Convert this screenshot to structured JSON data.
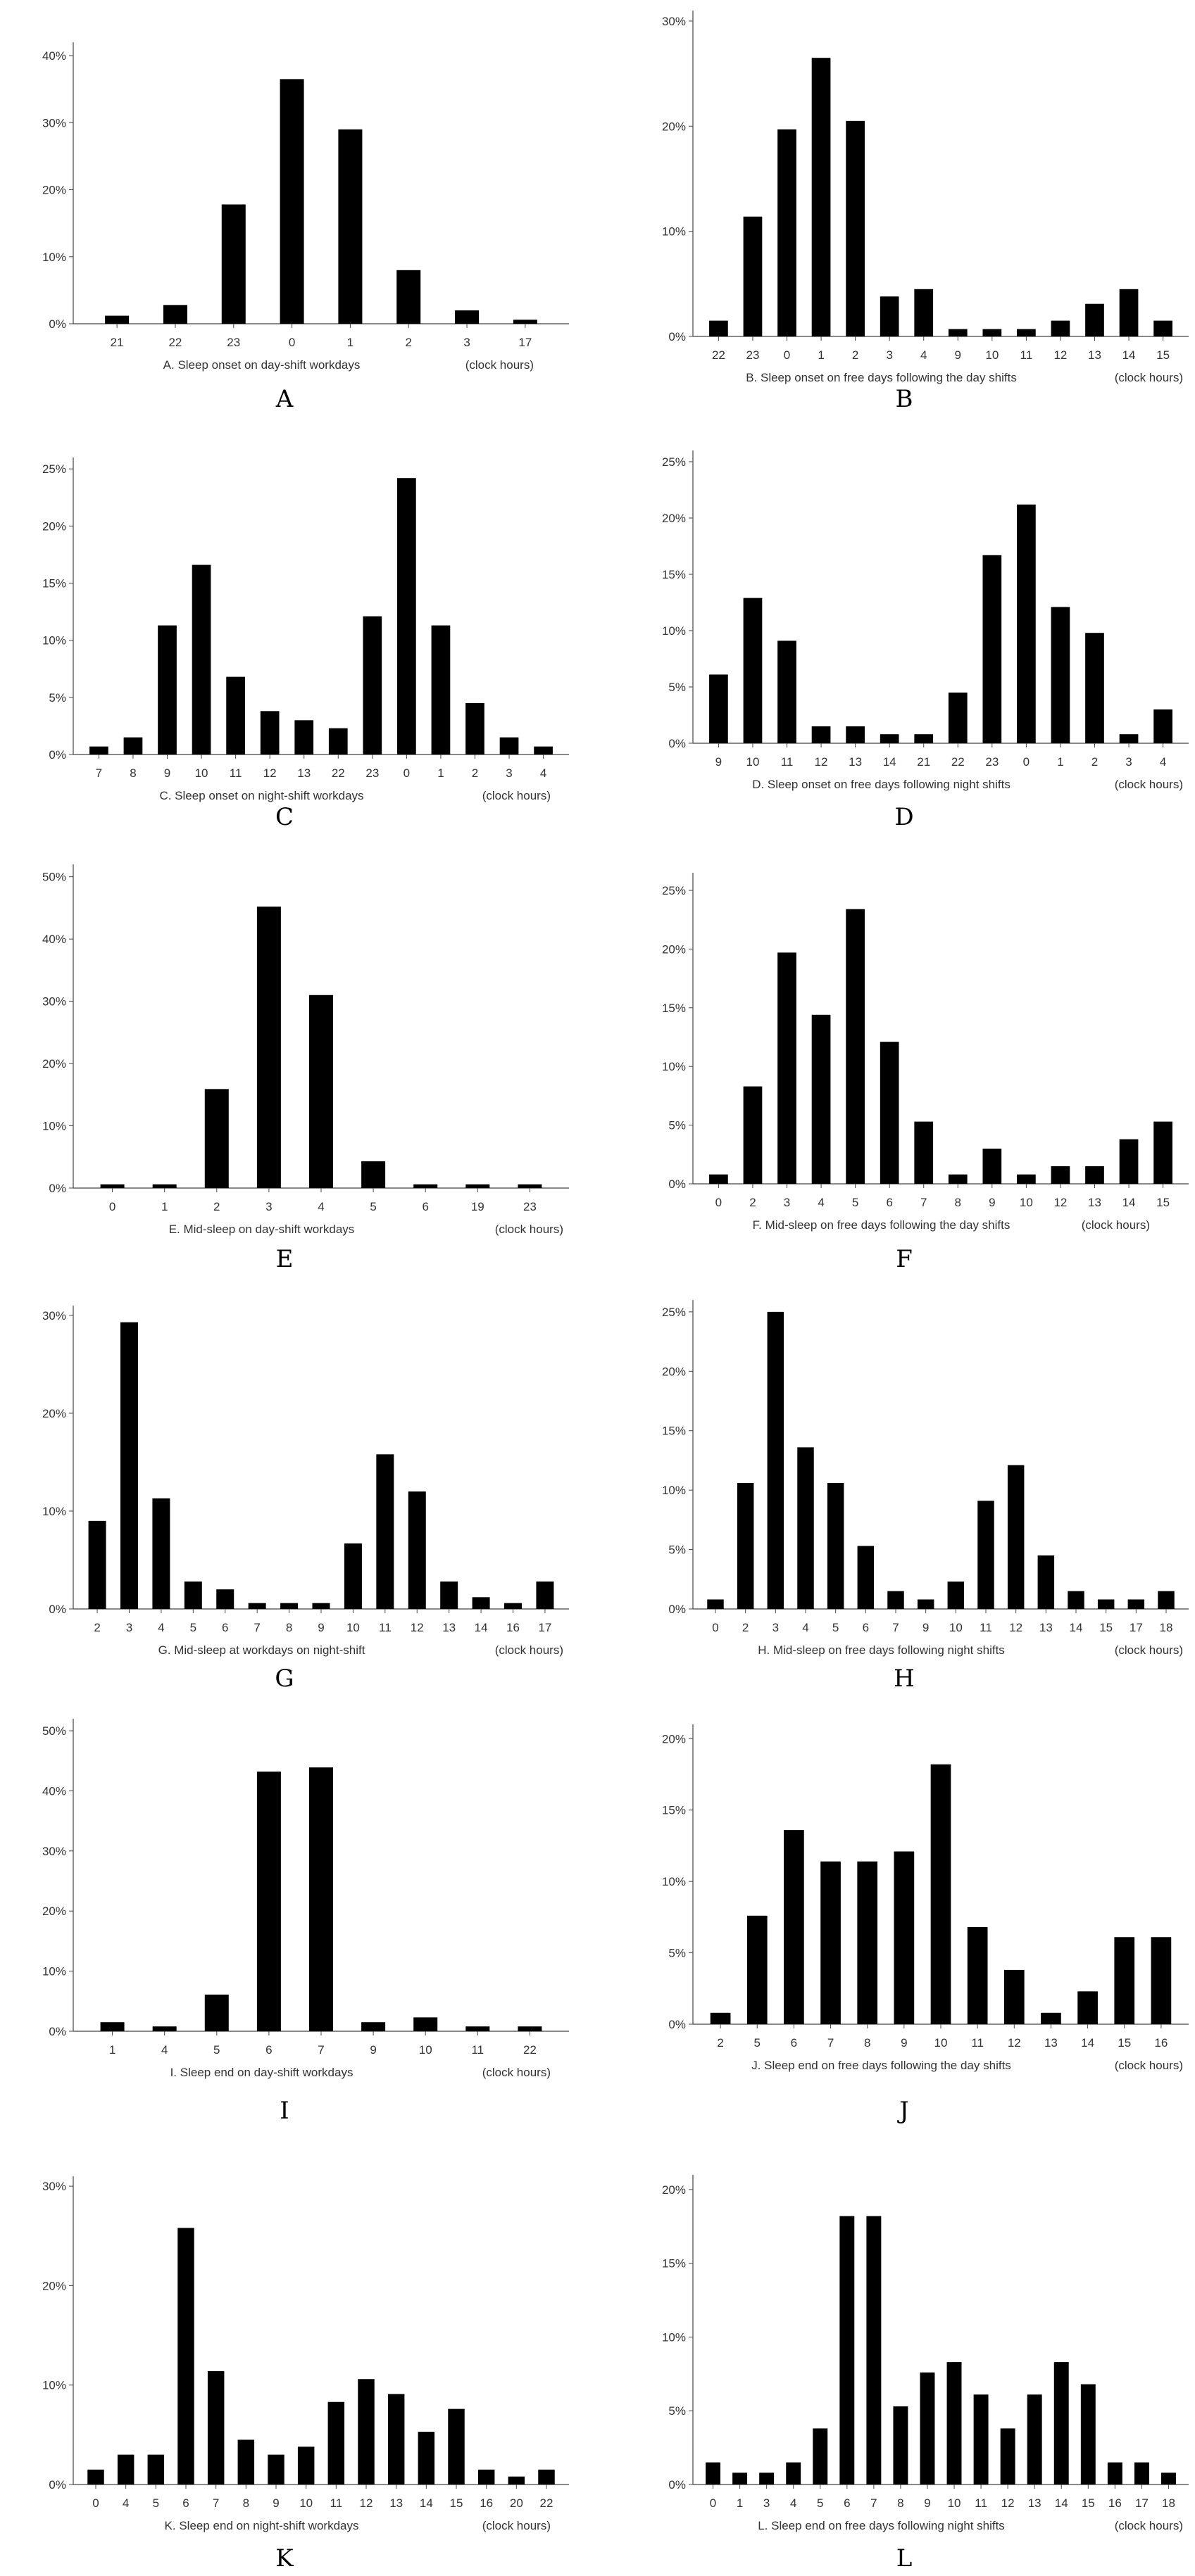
{
  "chart_data": [
    {
      "id": "A",
      "type": "bar",
      "panel_label": "A",
      "caption": "A.  Sleep onset  on day-shift workdays",
      "unit_label": "(clock hours)",
      "y_ticks": [
        "0%",
        "10%",
        "20%",
        "30%",
        "40%"
      ],
      "ylim": [
        0,
        42
      ],
      "categories": [
        "21",
        "22",
        "23",
        "0",
        "1",
        "2",
        "3",
        "17"
      ],
      "values": [
        1.2,
        2.8,
        17.8,
        36.5,
        29,
        8,
        2,
        0.6
      ]
    },
    {
      "id": "B",
      "type": "bar",
      "panel_label": "B",
      "caption": "B. Sleep onset on free days following the day shifts",
      "unit_label": "(clock hours)",
      "y_ticks": [
        "0%",
        "10%",
        "20%",
        "30%"
      ],
      "ylim": [
        0,
        31
      ],
      "categories": [
        "22",
        "23",
        "0",
        "1",
        "2",
        "3",
        "4",
        "9",
        "10",
        "11",
        "12",
        "13",
        "14",
        "15"
      ],
      "values": [
        1.5,
        11.4,
        19.7,
        26.5,
        20.5,
        3.8,
        4.5,
        0.7,
        0.7,
        0.7,
        1.5,
        3.1,
        4.5,
        1.5
      ]
    },
    {
      "id": "C",
      "type": "bar",
      "panel_label": "C",
      "caption": "C. Sleep onset on night-shift workdays",
      "unit_label": "(clock hours)",
      "y_ticks": [
        "0%",
        "5%",
        "10%",
        "15%",
        "20%",
        "25%"
      ],
      "ylim": [
        0,
        26
      ],
      "categories": [
        "7",
        "8",
        "9",
        "10",
        "11",
        "12",
        "13",
        "22",
        "23",
        "0",
        "1",
        "2",
        "3",
        "4"
      ],
      "values": [
        0.7,
        1.5,
        11.3,
        16.6,
        6.8,
        3.8,
        3,
        2.3,
        12.1,
        24.2,
        11.3,
        4.5,
        1.5,
        0.7
      ]
    },
    {
      "id": "D",
      "type": "bar",
      "panel_label": "D",
      "caption": "D. Sleep onset on free days following night shifts",
      "unit_label": "(clock hours)",
      "y_ticks": [
        "0%",
        "5%",
        "10%",
        "15%",
        "20%",
        "25%"
      ],
      "ylim": [
        0,
        26
      ],
      "categories": [
        "9",
        "10",
        "11",
        "12",
        "13",
        "14",
        "21",
        "22",
        "23",
        "0",
        "1",
        "2",
        "3",
        "4"
      ],
      "values": [
        6.1,
        12.9,
        9.1,
        1.5,
        1.5,
        0.8,
        0.8,
        4.5,
        16.7,
        21.2,
        12.1,
        9.8,
        0.8,
        3
      ]
    },
    {
      "id": "E",
      "type": "bar",
      "panel_label": "E",
      "caption": "E. Mid-sleep on day-shift workdays",
      "unit_label": "(clock hours)",
      "y_ticks": [
        "0%",
        "10%",
        "20%",
        "30%",
        "40%",
        "50%"
      ],
      "ylim": [
        0,
        52
      ],
      "categories": [
        "0",
        "1",
        "2",
        "3",
        "4",
        "5",
        "6",
        "19",
        "23"
      ],
      "values": [
        0.6,
        0.6,
        15.9,
        45.2,
        31,
        4.3,
        0.6,
        0.6,
        0.6
      ]
    },
    {
      "id": "F",
      "type": "bar",
      "panel_label": "F",
      "caption": "F. Mid-sleep on free days following the day shifts",
      "unit_label": "(clock hours)",
      "y_ticks": [
        "0%",
        "5%",
        "10%",
        "15%",
        "20%",
        "25%"
      ],
      "ylim": [
        0,
        26.5
      ],
      "categories": [
        "0",
        "2",
        "3",
        "4",
        "5",
        "6",
        "7",
        "8",
        "9",
        "10",
        "12",
        "13",
        "14",
        "15"
      ],
      "values": [
        0.8,
        8.3,
        19.7,
        14.4,
        23.4,
        12.1,
        5.3,
        0.8,
        3,
        0.8,
        1.5,
        1.5,
        3.8,
        5.3
      ]
    },
    {
      "id": "G",
      "type": "bar",
      "panel_label": "G",
      "caption": "G. Mid-sleep at workdays on night-shift",
      "unit_label": "(clock hours)",
      "y_ticks": [
        "0%",
        "10%",
        "20%",
        "30%"
      ],
      "ylim": [
        0,
        31
      ],
      "categories": [
        "2",
        "3",
        "4",
        "5",
        "6",
        "7",
        "8",
        "9",
        "10",
        "11",
        "12",
        "13",
        "14",
        "16",
        "17"
      ],
      "values": [
        9,
        29.3,
        11.3,
        2.8,
        2,
        0.6,
        0.6,
        0.6,
        6.7,
        15.8,
        12,
        2.8,
        1.2,
        0.6,
        2.8
      ]
    },
    {
      "id": "H",
      "type": "bar",
      "panel_label": "H",
      "caption": "H. Mid-sleep on free days following night shifts",
      "unit_label": "(clock hours)",
      "y_ticks": [
        "0%",
        "5%",
        "10%",
        "15%",
        "20%",
        "25%"
      ],
      "ylim": [
        0,
        26
      ],
      "categories": [
        "0",
        "2",
        "3",
        "4",
        "5",
        "6",
        "7",
        "9",
        "10",
        "11",
        "12",
        "13",
        "14",
        "15",
        "17",
        "18"
      ],
      "values": [
        0.8,
        10.6,
        25,
        13.6,
        10.6,
        5.3,
        1.5,
        0.8,
        2.3,
        9.1,
        12.1,
        4.5,
        1.5,
        0.8,
        0.8,
        1.5
      ]
    },
    {
      "id": "I",
      "type": "bar",
      "panel_label": "I",
      "caption": "I. Sleep end on day-shift workdays",
      "unit_label": "(clock hours)",
      "y_ticks": [
        "0%",
        "10%",
        "20%",
        "30%",
        "40%",
        "50%"
      ],
      "ylim": [
        0,
        52
      ],
      "categories": [
        "1",
        "4",
        "5",
        "6",
        "7",
        "9",
        "10",
        "11",
        "22"
      ],
      "values": [
        1.5,
        0.8,
        6.1,
        43.2,
        43.9,
        1.5,
        2.3,
        0.8,
        0.8
      ]
    },
    {
      "id": "J",
      "type": "bar",
      "panel_label": "J",
      "caption": "J. Sleep end on free days following the day shifts",
      "unit_label": "(clock hours)",
      "y_ticks": [
        "0%",
        "5%",
        "10%",
        "15%",
        "20%"
      ],
      "ylim": [
        0,
        21
      ],
      "categories": [
        "2",
        "5",
        "6",
        "7",
        "8",
        "9",
        "10",
        "11",
        "12",
        "13",
        "14",
        "15",
        "16"
      ],
      "values": [
        0.8,
        7.6,
        13.6,
        11.4,
        11.4,
        12.1,
        18.2,
        6.8,
        3.8,
        0.8,
        2.3,
        6.1,
        6.1
      ]
    },
    {
      "id": "K",
      "type": "bar",
      "panel_label": "K",
      "caption": "K. Sleep end on night-shift workdays",
      "unit_label": "(clock hours)",
      "y_ticks": [
        "0%",
        "10%",
        "20%",
        "30%"
      ],
      "ylim": [
        0,
        31
      ],
      "categories": [
        "0",
        "4",
        "5",
        "6",
        "7",
        "8",
        "9",
        "10",
        "11",
        "12",
        "13",
        "14",
        "15",
        "16",
        "20",
        "22"
      ],
      "values": [
        1.5,
        3,
        3,
        25.8,
        11.4,
        4.5,
        3,
        3.8,
        8.3,
        10.6,
        9.1,
        5.3,
        7.6,
        1.5,
        0.8,
        1.5
      ]
    },
    {
      "id": "L",
      "type": "bar",
      "panel_label": "L",
      "caption": "L. Sleep end on free days following night shifts",
      "unit_label": "(clock hours)",
      "y_ticks": [
        "0%",
        "5%",
        "10%",
        "15%",
        "20%"
      ],
      "ylim": [
        0,
        21
      ],
      "categories": [
        "0",
        "1",
        "3",
        "4",
        "5",
        "6",
        "7",
        "8",
        "9",
        "10",
        "11",
        "12",
        "13",
        "14",
        "15",
        "16",
        "17",
        "18"
      ],
      "values": [
        1.5,
        0.8,
        0.8,
        1.5,
        3.8,
        18.2,
        18.2,
        5.3,
        7.6,
        8.3,
        6.1,
        3.8,
        6.1,
        8.3,
        6.8,
        1.5,
        1.5,
        0.8
      ]
    }
  ]
}
